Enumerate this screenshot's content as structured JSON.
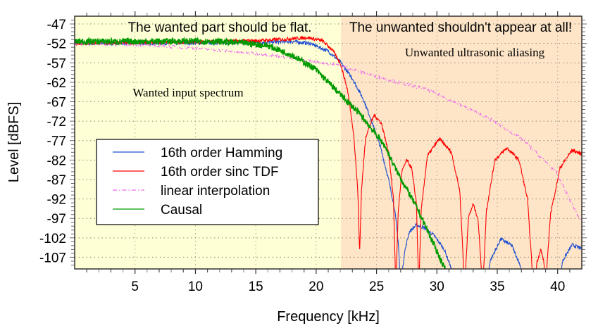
{
  "chart_data": {
    "type": "line",
    "title": "",
    "xlabel": "Frequency [kHz]",
    "ylabel": "Level [dBFS]",
    "xlim": [
      0,
      42
    ],
    "ylim": [
      -110,
      -45
    ],
    "xticks": [
      5,
      10,
      15,
      20,
      25,
      30,
      35,
      40
    ],
    "yticks": [
      -47,
      -52,
      -57,
      -62,
      -67,
      -72,
      -77,
      -82,
      -87,
      -92,
      -97,
      -102,
      -107
    ],
    "grid": true,
    "legend_position": "center-left",
    "regions": [
      {
        "from": 0,
        "to": 22.05,
        "color": "#ffffd6",
        "label": "Wanted input spectrum",
        "heading": "The wanted part should be flat."
      },
      {
        "from": 22.05,
        "to": 42,
        "color": "#fee5c8",
        "label": "Unwanted ultrasonic aliasing",
        "heading": "The unwanted shouldn't appear at all!"
      }
    ],
    "series": [
      {
        "name": "16th order Hamming",
        "color": "#1f4fd0",
        "style": "solid",
        "points": [
          [
            0,
            -52
          ],
          [
            10,
            -51.9
          ],
          [
            15,
            -51.8
          ],
          [
            18,
            -51.5
          ],
          [
            19.5,
            -52
          ],
          [
            21,
            -54
          ],
          [
            22,
            -56.8
          ],
          [
            23,
            -61
          ],
          [
            23.9,
            -66.3
          ],
          [
            24.6,
            -72
          ],
          [
            25.3,
            -78.4
          ],
          [
            26,
            -87
          ],
          [
            26.5,
            -94.6
          ],
          [
            26.8,
            -103
          ],
          [
            27.0,
            -115
          ],
          [
            27.3,
            -106
          ],
          [
            27.7,
            -100.5
          ],
          [
            28.3,
            -98.7
          ],
          [
            29,
            -99.5
          ],
          [
            29.8,
            -101.5
          ],
          [
            30.6,
            -105
          ],
          [
            31.1,
            -109
          ],
          [
            31.5,
            -115
          ],
          [
            34.1,
            -115
          ],
          [
            34.4,
            -108
          ],
          [
            35.3,
            -102.3
          ],
          [
            36.2,
            -104
          ],
          [
            36.9,
            -109
          ],
          [
            37.2,
            -115
          ],
          [
            40.1,
            -115
          ],
          [
            40.4,
            -108
          ],
          [
            41.2,
            -103.8
          ],
          [
            42,
            -104.8
          ]
        ]
      },
      {
        "name": "16th order sinc TDF",
        "color": "#ff0000",
        "style": "solid",
        "points": [
          [
            0,
            -52
          ],
          [
            5,
            -51.8
          ],
          [
            10,
            -51.6
          ],
          [
            15,
            -51.3
          ],
          [
            17,
            -51
          ],
          [
            19.3,
            -50.5
          ],
          [
            20.5,
            -51.3
          ],
          [
            21.3,
            -53.5
          ],
          [
            22,
            -57
          ],
          [
            22.6,
            -64
          ],
          [
            23.1,
            -75
          ],
          [
            23.45,
            -90
          ],
          [
            23.6,
            -106
          ],
          [
            23.75,
            -90
          ],
          [
            24.1,
            -76
          ],
          [
            24.8,
            -70.4
          ],
          [
            25.4,
            -72.5
          ],
          [
            26,
            -80
          ],
          [
            26.4,
            -92
          ],
          [
            26.6,
            -115
          ],
          [
            26.8,
            -95
          ],
          [
            27.1,
            -85
          ],
          [
            27.5,
            -82
          ],
          [
            27.9,
            -84
          ],
          [
            28.3,
            -93
          ],
          [
            28.5,
            -115
          ],
          [
            28.7,
            -95
          ],
          [
            29.2,
            -81
          ],
          [
            30.2,
            -76.5
          ],
          [
            31.2,
            -80
          ],
          [
            31.9,
            -90
          ],
          [
            32.3,
            -115
          ],
          [
            32.6,
            -97
          ],
          [
            33.0,
            -93.3
          ],
          [
            33.4,
            -97
          ],
          [
            33.8,
            -115
          ],
          [
            34.1,
            -95
          ],
          [
            34.8,
            -82
          ],
          [
            35.8,
            -78.9
          ],
          [
            36.8,
            -82
          ],
          [
            37.5,
            -92
          ],
          [
            38.0,
            -115
          ],
          [
            38.3,
            -108
          ],
          [
            38.6,
            -105
          ],
          [
            38.85,
            -108
          ],
          [
            39.0,
            -115
          ],
          [
            39.4,
            -96
          ],
          [
            40.2,
            -84
          ],
          [
            41.2,
            -79.4
          ],
          [
            42,
            -80.5
          ]
        ]
      },
      {
        "name": "linear interpolation",
        "color": "#ee66ee",
        "style": "dash-dot",
        "points": [
          [
            0,
            -52
          ],
          [
            5,
            -52.3
          ],
          [
            10,
            -53.2
          ],
          [
            16,
            -54.9
          ],
          [
            21.8,
            -57.6
          ],
          [
            25,
            -60.5
          ],
          [
            29.3,
            -64
          ],
          [
            34.6,
            -71.7
          ],
          [
            37,
            -76.5
          ],
          [
            39.8,
            -84.8
          ],
          [
            41.7,
            -96.4
          ],
          [
            42,
            -98
          ]
        ]
      },
      {
        "name": "Causal",
        "color": "#009900",
        "style": "solid",
        "points": [
          [
            0,
            -51.5
          ],
          [
            5,
            -51.5
          ],
          [
            10,
            -51.4
          ],
          [
            12,
            -51.5
          ],
          [
            14,
            -51.9
          ],
          [
            16,
            -52.6
          ],
          [
            18,
            -55
          ],
          [
            19.9,
            -58.5
          ],
          [
            21.8,
            -64.5
          ],
          [
            23.7,
            -70.4
          ],
          [
            25.7,
            -78.4
          ],
          [
            26.5,
            -83.8
          ],
          [
            28.4,
            -94.6
          ],
          [
            30.6,
            -109.5
          ],
          [
            31,
            -112
          ]
        ]
      }
    ]
  }
}
